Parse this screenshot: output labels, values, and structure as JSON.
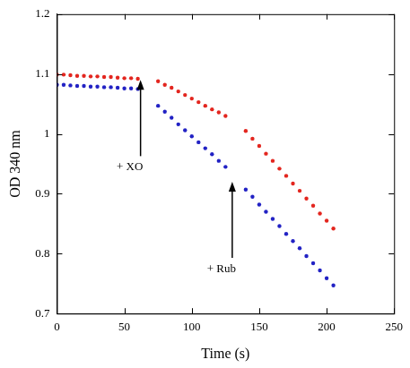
{
  "chart_data": {
    "type": "scatter",
    "x_label": "Time (s)",
    "y_label": "OD 340 nm",
    "x": [
      0,
      5,
      10,
      15,
      20,
      25,
      30,
      35,
      40,
      45,
      50,
      55,
      60,
      75,
      80,
      85,
      90,
      95,
      100,
      105,
      110,
      115,
      120,
      125,
      140,
      145,
      150,
      155,
      160,
      165,
      170,
      175,
      180,
      185,
      190,
      195,
      200,
      205
    ],
    "series": [
      {
        "color": "#e3261f",
        "marker": "circle",
        "values": [
          1.099,
          1.099,
          1.098,
          1.097,
          1.097,
          1.096,
          1.096,
          1.095,
          1.095,
          1.094,
          1.093,
          1.093,
          1.092,
          1.088,
          1.082,
          1.077,
          1.071,
          1.065,
          1.059,
          1.053,
          1.047,
          1.041,
          1.036,
          1.03,
          1.005,
          0.992,
          0.98,
          0.967,
          0.955,
          0.942,
          0.93,
          0.917,
          0.905,
          0.892,
          0.88,
          0.867,
          0.855,
          0.842
        ]
      },
      {
        "color": "#2222c4",
        "marker": "circle",
        "values": [
          1.082,
          1.082,
          1.081,
          1.08,
          1.08,
          1.079,
          1.079,
          1.078,
          1.078,
          1.077,
          1.076,
          1.076,
          1.075,
          1.047,
          1.037,
          1.027,
          1.016,
          1.006,
          0.996,
          0.986,
          0.976,
          0.966,
          0.955,
          0.945,
          0.907,
          0.895,
          0.882,
          0.87,
          0.858,
          0.846,
          0.833,
          0.821,
          0.809,
          0.796,
          0.784,
          0.772,
          0.759,
          0.747
        ]
      }
    ],
    "annotations": [
      {
        "text": "+ XO",
        "x": 62,
        "y": 1.09
      },
      {
        "text": "+ Rub",
        "x": 130,
        "y": 0.92
      }
    ],
    "xlim": [
      0,
      250
    ],
    "xticks": [
      0,
      50,
      100,
      150,
      200,
      250
    ],
    "ylim": [
      0.7,
      1.2
    ],
    "yticks": [
      0.7,
      0.8,
      0.9,
      1,
      1.1,
      1.2
    ],
    "grid": false
  }
}
